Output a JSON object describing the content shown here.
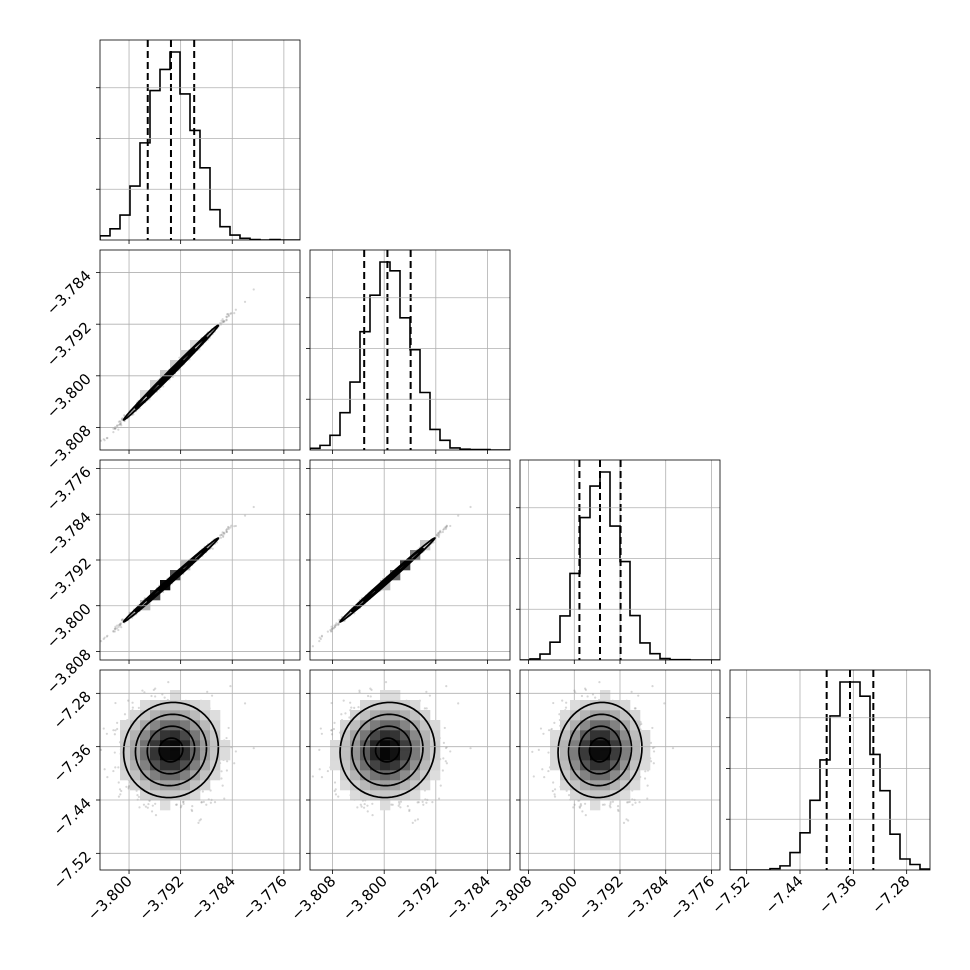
{
  "chart_data": {
    "type": "corner",
    "grid": true,
    "parameters": [
      {
        "mean": -3.7935,
        "sd": 0.0036,
        "quantiles": [
          -3.7971,
          -3.7935,
          -3.7899
        ],
        "range": [
          -3.8045,
          -3.7735
        ],
        "ticks": [
          -3.8,
          -3.792,
          -3.784,
          -3.776
        ],
        "tick_labels": [
          "−3.800",
          "−3.792",
          "−3.784",
          "−3.776"
        ]
      },
      {
        "mean": -3.7995,
        "sd": 0.0036,
        "quantiles": [
          -3.8031,
          -3.7995,
          -3.7959
        ],
        "range": [
          -3.8115,
          -3.7805
        ],
        "ticks": [
          -3.808,
          -3.8,
          -3.792,
          -3.784
        ],
        "tick_labels": [
          "−3.808",
          "−3.800",
          "−3.792",
          "−3.784"
        ]
      },
      {
        "mean": -3.7955,
        "sd": 0.0036,
        "quantiles": [
          -3.7991,
          -3.7955,
          -3.7919
        ],
        "range": [
          -3.8095,
          -3.7745
        ],
        "ticks": [
          -3.808,
          -3.8,
          -3.792,
          -3.784,
          -3.776
        ],
        "tick_labels": [
          "−3.808",
          "−3.800",
          "−3.792",
          "−3.784",
          "−3.776"
        ]
      },
      {
        "mean": -7.365,
        "sd": 0.035,
        "quantiles": [
          -7.4,
          -7.365,
          -7.33
        ],
        "range": [
          -7.545,
          -7.245
        ],
        "ticks": [
          -7.52,
          -7.44,
          -7.36,
          -7.28
        ],
        "tick_labels": [
          "−7.52",
          "−7.44",
          "−7.36",
          "−7.28"
        ]
      }
    ],
    "correlations": [
      [
        1,
        0.997,
        0.997,
        0.05
      ],
      [
        0.997,
        1,
        0.997,
        0.05
      ],
      [
        0.997,
        0.997,
        1,
        0.05
      ],
      [
        0.05,
        0.05,
        0.05,
        1
      ]
    ]
  }
}
